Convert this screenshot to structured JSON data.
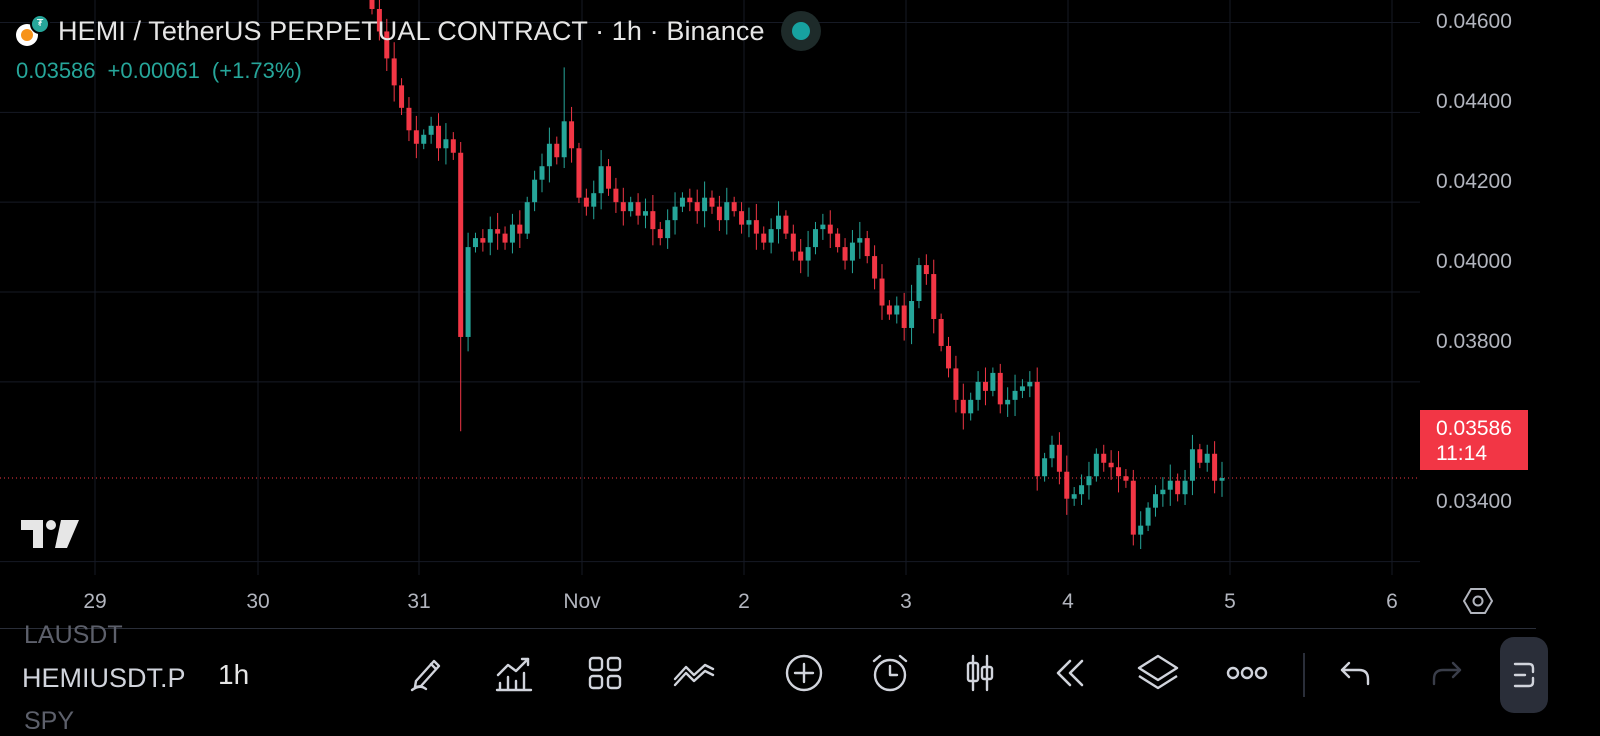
{
  "header": {
    "title": "HEMI / TetherUS PERPETUAL CONTRACT · 1h · Binance",
    "last_price": "0.03586",
    "change": "+0.00061",
    "change_pct": "(+1.73%)",
    "status_color": "#17a2a0"
  },
  "price_axis": {
    "labels": [
      "0.04600",
      "0.04400",
      "0.04200",
      "0.04000",
      "0.03800",
      "0.03400"
    ],
    "current_price": "0.03586",
    "countdown": "11:14"
  },
  "time_axis": {
    "labels": [
      "29",
      "30",
      "31",
      "Nov",
      "2",
      "3",
      "4",
      "5",
      "6"
    ]
  },
  "toolbar": {
    "watchlist_prev": "LAUSDT",
    "watchlist_current": "HEMIUSDT.P",
    "watchlist_next": "SPY",
    "interval": "1h",
    "icons": [
      "pencil-icon",
      "indicators-icon",
      "grid-icon",
      "chart-type-icon",
      "plus-circle-icon",
      "alarm-icon",
      "bar-style-icon",
      "replay-icon",
      "layers-icon",
      "more-icon",
      "undo-icon",
      "redo-icon",
      "side-panel-icon"
    ]
  },
  "colors": {
    "up": "#26a69a",
    "down": "#f23645",
    "background": "#000000",
    "grid": "#161a25"
  },
  "chart_data": {
    "type": "candlestick",
    "symbol": "HEMIUSDT.P",
    "interval": "1h",
    "x_axis": {
      "type": "date",
      "ticks": [
        "29",
        "30",
        "31",
        "Nov",
        "2",
        "3",
        "4",
        "5",
        "6"
      ]
    },
    "y_axis": {
      "range": [
        0.0327,
        0.0465
      ],
      "ticks": [
        0.046,
        0.044,
        0.042,
        0.04,
        0.038,
        0.034
      ]
    },
    "last_close": 0.03586,
    "series": [
      {
        "name": "HEMIUSDT.P",
        "values": [
          0.0463,
          0.0458,
          0.0452,
          0.0446,
          0.0441,
          0.0436,
          0.0433,
          0.0435,
          0.0437,
          0.0432,
          0.0434,
          0.0431,
          0.039,
          0.041,
          0.0412,
          0.0411,
          0.0414,
          0.0413,
          0.0411,
          0.0415,
          0.0413,
          0.042,
          0.0425,
          0.0428,
          0.0433,
          0.043,
          0.0438,
          0.0432,
          0.0421,
          0.0419,
          0.0422,
          0.0428,
          0.0423,
          0.042,
          0.0418,
          0.042,
          0.0417,
          0.0418,
          0.0414,
          0.0412,
          0.0416,
          0.0419,
          0.0421,
          0.042,
          0.0418,
          0.0421,
          0.0419,
          0.0416,
          0.042,
          0.0418,
          0.0415,
          0.0416,
          0.0413,
          0.0411,
          0.0414,
          0.0417,
          0.0413,
          0.0409,
          0.0407,
          0.041,
          0.0414,
          0.0415,
          0.0413,
          0.041,
          0.0407,
          0.0411,
          0.0412,
          0.0408,
          0.0403,
          0.0397,
          0.0395,
          0.0397,
          0.0392,
          0.0398,
          0.0406,
          0.0404,
          0.0394,
          0.0388,
          0.0383,
          0.0376,
          0.0373,
          0.0376,
          0.038,
          0.0378,
          0.0382,
          0.0375,
          0.0376,
          0.0378,
          0.0379,
          0.038,
          0.0359,
          0.0363,
          0.0366,
          0.036,
          0.0354,
          0.0355,
          0.0357,
          0.0359,
          0.0364,
          0.0362,
          0.0361,
          0.0359,
          0.0358,
          0.0346,
          0.0348,
          0.0352,
          0.0355,
          0.0356,
          0.0358,
          0.0355,
          0.0358,
          0.0365,
          0.0362,
          0.0364,
          0.0358,
          0.03586
        ]
      }
    ]
  }
}
